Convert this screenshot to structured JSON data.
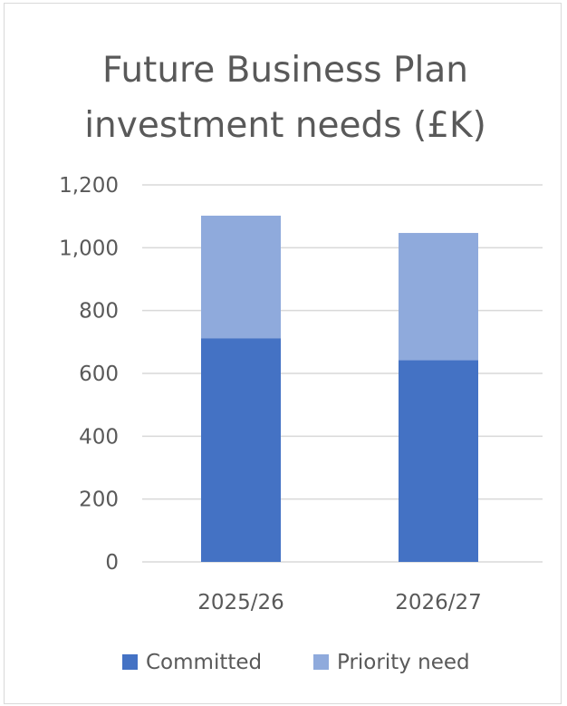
{
  "chart_data": {
    "type": "bar",
    "stacked": true,
    "title_lines": [
      "Future Business Plan",
      "investment needs (£K)"
    ],
    "categories": [
      "2025/26",
      "2026/27"
    ],
    "series": [
      {
        "name": "Committed",
        "values": [
          712,
          642
        ],
        "color": "#4472c4"
      },
      {
        "name": "Priority need",
        "values": [
          390,
          405
        ],
        "color": "#8faadc"
      }
    ],
    "ylim": [
      0,
      1200
    ],
    "yticks": [
      0,
      200,
      400,
      600,
      800,
      1000,
      1200
    ],
    "ytick_labels": [
      "0",
      "200",
      "400",
      "600",
      "800",
      "1,000",
      "1,200"
    ],
    "grid": true,
    "gridline_color": "#d9d9d9",
    "legend_position": "bottom"
  }
}
